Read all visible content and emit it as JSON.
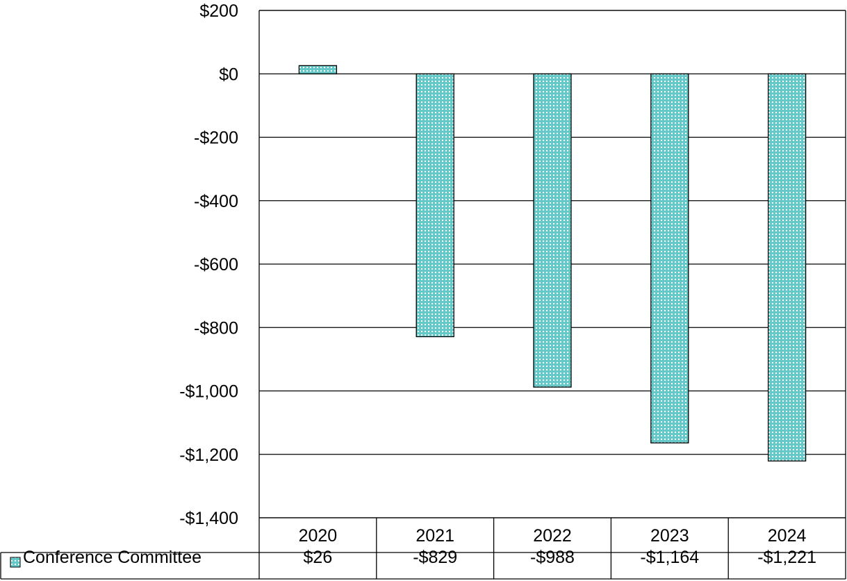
{
  "chart_data": {
    "type": "bar",
    "categories": [
      "2020",
      "2021",
      "2022",
      "2023",
      "2024"
    ],
    "series": [
      {
        "name": "Conference Committee",
        "values": [
          26,
          -829,
          -988,
          -1164,
          -1221
        ],
        "value_labels": [
          "$26",
          "-$829",
          "-$988",
          "-$1,164",
          "-$1,221"
        ],
        "color": "#66c9c9"
      }
    ],
    "y_ticks": [
      {
        "value": 200,
        "label": "$200"
      },
      {
        "value": 0,
        "label": "$0"
      },
      {
        "value": -200,
        "label": "-$200"
      },
      {
        "value": -400,
        "label": "-$400"
      },
      {
        "value": -600,
        "label": "-$600"
      },
      {
        "value": -800,
        "label": "-$800"
      },
      {
        "value": -1000,
        "label": "-$1,000"
      },
      {
        "value": -1200,
        "label": "-$1,200"
      },
      {
        "value": -1400,
        "label": "-$1,400"
      }
    ],
    "ylim": [
      -1400,
      200
    ],
    "grid": true,
    "legend": "data-table-left",
    "data_table": true,
    "title": "",
    "xlabel": "",
    "ylabel": ""
  }
}
